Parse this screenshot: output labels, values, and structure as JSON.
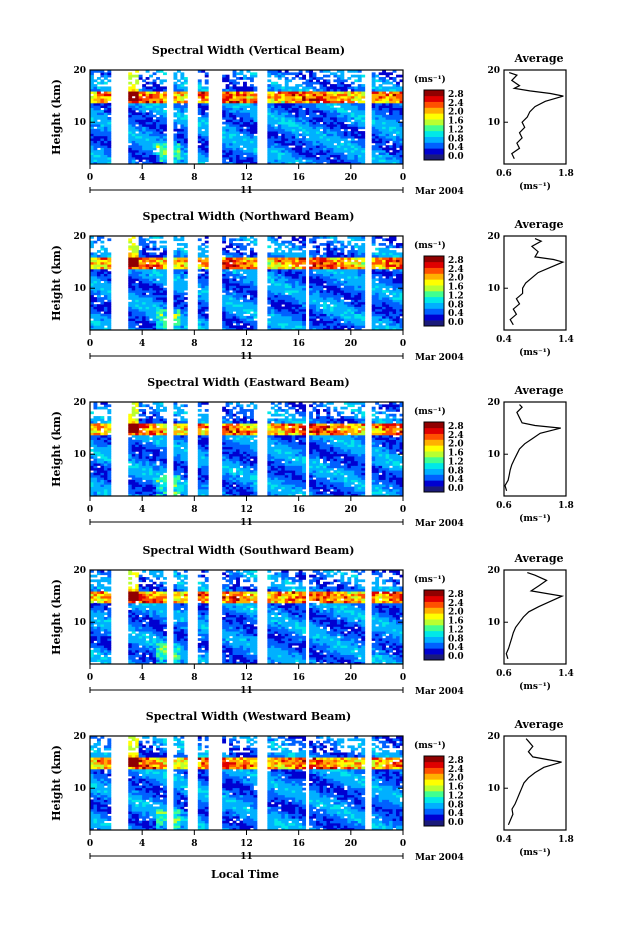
{
  "figure": {
    "xlabel": "Local Time",
    "date_label": "Mar 2004",
    "day_label": "11",
    "colorbar_unit": "(ms⁻¹)",
    "colorbar_ticks": [
      "2.8",
      "2.4",
      "2.0",
      "1.6",
      "1.2",
      "0.8",
      "0.4",
      "0.0"
    ],
    "colormap": [
      "#1a1a7a",
      "#0000d0",
      "#0060ff",
      "#00b0ff",
      "#00e8e8",
      "#40ff90",
      "#b8ff30",
      "#ffff00",
      "#ffb000",
      "#ff5000",
      "#e00000",
      "#900000"
    ],
    "average_title": "Average",
    "average_unit": "(ms⁻¹)",
    "ylabel": "Height (km)"
  },
  "chart_data": [
    {
      "type": "heatmap",
      "title": "Spectral Width (Vertical Beam)",
      "ylabel": "Height (km)",
      "x_ticks": [
        "0",
        "4",
        "8",
        "12",
        "16",
        "20",
        "0"
      ],
      "y_ticks": [
        "20",
        "10"
      ],
      "xlim": [
        0,
        24
      ],
      "ylim": [
        2,
        20
      ],
      "clim": [
        0,
        3.0
      ],
      "gaps": [
        [
          1.6,
          2.8
        ],
        [
          6.0,
          6.4
        ],
        [
          7.4,
          8.3
        ],
        [
          9.2,
          10.1
        ],
        [
          12.9,
          13.6
        ],
        [
          21.2,
          21.5
        ]
      ],
      "average": {
        "title": "Average",
        "x_ticks": [
          "0.6",
          "1.8"
        ],
        "xlim": [
          0.6,
          1.8
        ],
        "y_ticks": [
          "20",
          "10"
        ],
        "heights": [
          3,
          4,
          5,
          6,
          7,
          8,
          9,
          10,
          11,
          12,
          13,
          14,
          15,
          15.5,
          16,
          16.5,
          17,
          18,
          19,
          19.5
        ],
        "values": [
          0.8,
          0.75,
          0.9,
          0.85,
          0.95,
          0.9,
          1.0,
          0.95,
          1.05,
          1.1,
          1.2,
          1.4,
          1.75,
          1.5,
          1.1,
          0.8,
          0.9,
          0.75,
          0.85,
          0.7
        ]
      }
    },
    {
      "type": "heatmap",
      "title": "Spectral Width (Northward Beam)",
      "ylabel": "Height (km)",
      "x_ticks": [
        "0",
        "4",
        "8",
        "12",
        "16",
        "20",
        "0"
      ],
      "y_ticks": [
        "20",
        "10"
      ],
      "xlim": [
        0,
        24
      ],
      "ylim": [
        2,
        20
      ],
      "clim": [
        0,
        3.0
      ],
      "gaps": [
        [
          1.6,
          2.8
        ],
        [
          6.0,
          6.4
        ],
        [
          7.4,
          8.3
        ],
        [
          9.2,
          10.1
        ],
        [
          12.9,
          13.6
        ],
        [
          16.5,
          16.9
        ],
        [
          21.2,
          21.5
        ]
      ],
      "average": {
        "title": "Average",
        "x_ticks": [
          "0.4",
          "1.4"
        ],
        "xlim": [
          0.4,
          1.4
        ],
        "y_ticks": [
          "20",
          "10"
        ],
        "heights": [
          3,
          4,
          5,
          6,
          7,
          8,
          9,
          10,
          11,
          12,
          13,
          14,
          15,
          15.5,
          16,
          17,
          18,
          19,
          19.5
        ],
        "values": [
          0.55,
          0.5,
          0.6,
          0.55,
          0.65,
          0.6,
          0.7,
          0.7,
          0.75,
          0.85,
          0.95,
          1.15,
          1.35,
          1.2,
          0.9,
          0.95,
          0.85,
          1.0,
          0.9
        ]
      }
    },
    {
      "type": "heatmap",
      "title": "Spectral Width (Eastward Beam)",
      "ylabel": "Height (km)",
      "x_ticks": [
        "0",
        "4",
        "8",
        "12",
        "16",
        "20",
        "0"
      ],
      "y_ticks": [
        "20",
        "10"
      ],
      "xlim": [
        0,
        24
      ],
      "ylim": [
        2,
        20
      ],
      "clim": [
        0,
        3.0
      ],
      "gaps": [
        [
          1.6,
          2.8
        ],
        [
          6.0,
          6.4
        ],
        [
          7.4,
          8.3
        ],
        [
          9.2,
          10.1
        ],
        [
          12.9,
          13.6
        ],
        [
          16.5,
          16.9
        ],
        [
          21.2,
          21.5
        ]
      ],
      "average": {
        "title": "Average",
        "x_ticks": [
          "0.6",
          "1.8"
        ],
        "xlim": [
          0.6,
          1.8
        ],
        "y_ticks": [
          "20",
          "10"
        ],
        "heights": [
          3,
          4,
          5,
          6,
          7,
          8,
          9,
          10,
          11,
          12,
          13,
          14,
          15,
          15.5,
          16,
          17,
          18,
          19,
          19.5
        ],
        "values": [
          0.65,
          0.62,
          0.68,
          0.7,
          0.72,
          0.75,
          0.8,
          0.85,
          0.9,
          1.0,
          1.15,
          1.3,
          1.7,
          1.2,
          0.95,
          0.9,
          0.85,
          0.95,
          0.9
        ]
      }
    },
    {
      "type": "heatmap",
      "title": "Spectral Width (Southward Beam)",
      "ylabel": "Height (km)",
      "x_ticks": [
        "0",
        "4",
        "8",
        "12",
        "16",
        "20",
        "0"
      ],
      "y_ticks": [
        "20",
        "10"
      ],
      "xlim": [
        0,
        24
      ],
      "ylim": [
        2,
        20
      ],
      "clim": [
        0,
        3.0
      ],
      "gaps": [
        [
          1.6,
          2.8
        ],
        [
          6.0,
          6.4
        ],
        [
          7.4,
          8.3
        ],
        [
          9.2,
          10.1
        ],
        [
          12.9,
          13.6
        ],
        [
          16.5,
          16.9
        ],
        [
          21.2,
          21.5
        ]
      ],
      "average": {
        "title": "Average",
        "x_ticks": [
          "0.6",
          "1.4"
        ],
        "xlim": [
          0.6,
          1.4
        ],
        "y_ticks": [
          "20",
          "10"
        ],
        "heights": [
          3,
          4,
          5,
          6,
          7,
          8,
          9,
          10,
          11,
          12,
          13,
          14,
          15,
          16,
          17,
          18,
          19,
          19.5
        ],
        "values": [
          0.65,
          0.63,
          0.66,
          0.68,
          0.7,
          0.72,
          0.75,
          0.8,
          0.85,
          0.92,
          1.05,
          1.2,
          1.35,
          0.95,
          1.05,
          1.15,
          1.0,
          0.9
        ]
      }
    },
    {
      "type": "heatmap",
      "title": "Spectral Width (Westward Beam)",
      "ylabel": "Height (km)",
      "x_ticks": [
        "0",
        "4",
        "8",
        "12",
        "16",
        "20",
        "0"
      ],
      "y_ticks": [
        "20",
        "10"
      ],
      "xlim": [
        0,
        24
      ],
      "ylim": [
        2,
        20
      ],
      "clim": [
        0,
        3.0
      ],
      "gaps": [
        [
          1.6,
          2.8
        ],
        [
          6.0,
          6.4
        ],
        [
          7.4,
          8.3
        ],
        [
          9.2,
          10.1
        ],
        [
          12.9,
          13.6
        ],
        [
          16.5,
          16.9
        ],
        [
          21.2,
          21.5
        ]
      ],
      "average": {
        "title": "Average",
        "x_ticks": [
          "0.4",
          "1.8"
        ],
        "xlim": [
          0.4,
          1.8
        ],
        "y_ticks": [
          "20",
          "10"
        ],
        "heights": [
          3,
          4,
          5,
          6,
          7,
          8,
          9,
          10,
          11,
          12,
          13,
          14,
          15,
          16,
          17,
          18,
          19,
          19.5
        ],
        "values": [
          0.5,
          0.55,
          0.6,
          0.58,
          0.65,
          0.7,
          0.75,
          0.8,
          0.85,
          0.95,
          1.1,
          1.3,
          1.7,
          1.05,
          0.95,
          1.05,
          0.95,
          0.9
        ]
      }
    }
  ]
}
